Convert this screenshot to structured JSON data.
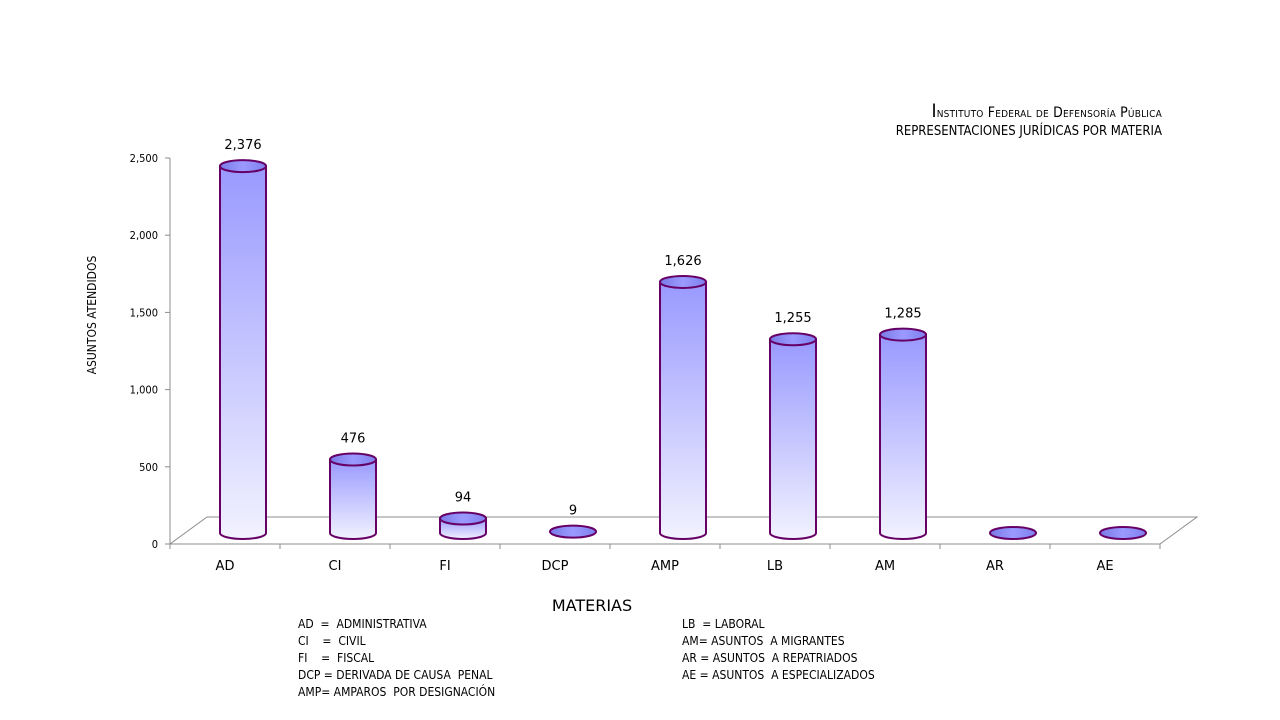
{
  "chart_data": {
    "type": "bar",
    "title": "Instituto Federal de Defensoría Pública",
    "subtitle": "REPRESENTACIONES JURÍDICAS POR MATERIA",
    "xlabel": "MATERIAS",
    "ylabel": "ASUNTOS ATENDIDOS",
    "categories": [
      "AD",
      "CI",
      "FI",
      "DCP",
      "AMP",
      "LB",
      "AM",
      "AR",
      "AE"
    ],
    "values": [
      2376,
      476,
      94,
      9,
      1626,
      1255,
      1285,
      0,
      0
    ],
    "data_labels": [
      "2,376",
      "476",
      "94",
      "9",
      "1,626",
      "1,255",
      "1,285",
      "",
      ""
    ],
    "yticks": [
      "0",
      "500",
      "1,000",
      "1,500",
      "2,000",
      "2,500"
    ],
    "ylim": [
      0,
      2500
    ],
    "grid": false,
    "style": "3d-cylinder",
    "bar_color": "#9999ff",
    "outline_color": "#660066"
  },
  "legend_left": [
    "AD  =  ADMINISTRATIVA",
    "CI    =  CIVIL",
    "FI    =  FISCAL",
    "DCP = DERIVADA DE CAUSA  PENAL",
    "AMP= AMPAROS  POR DESIGNACIÓN"
  ],
  "legend_right": [
    "LB  = LABORAL",
    "AM= ASUNTOS  A MIGRANTES",
    "AR = ASUNTOS  A REPATRIADOS",
    "AE = ASUNTOS  A ESPECIALIZADOS"
  ]
}
